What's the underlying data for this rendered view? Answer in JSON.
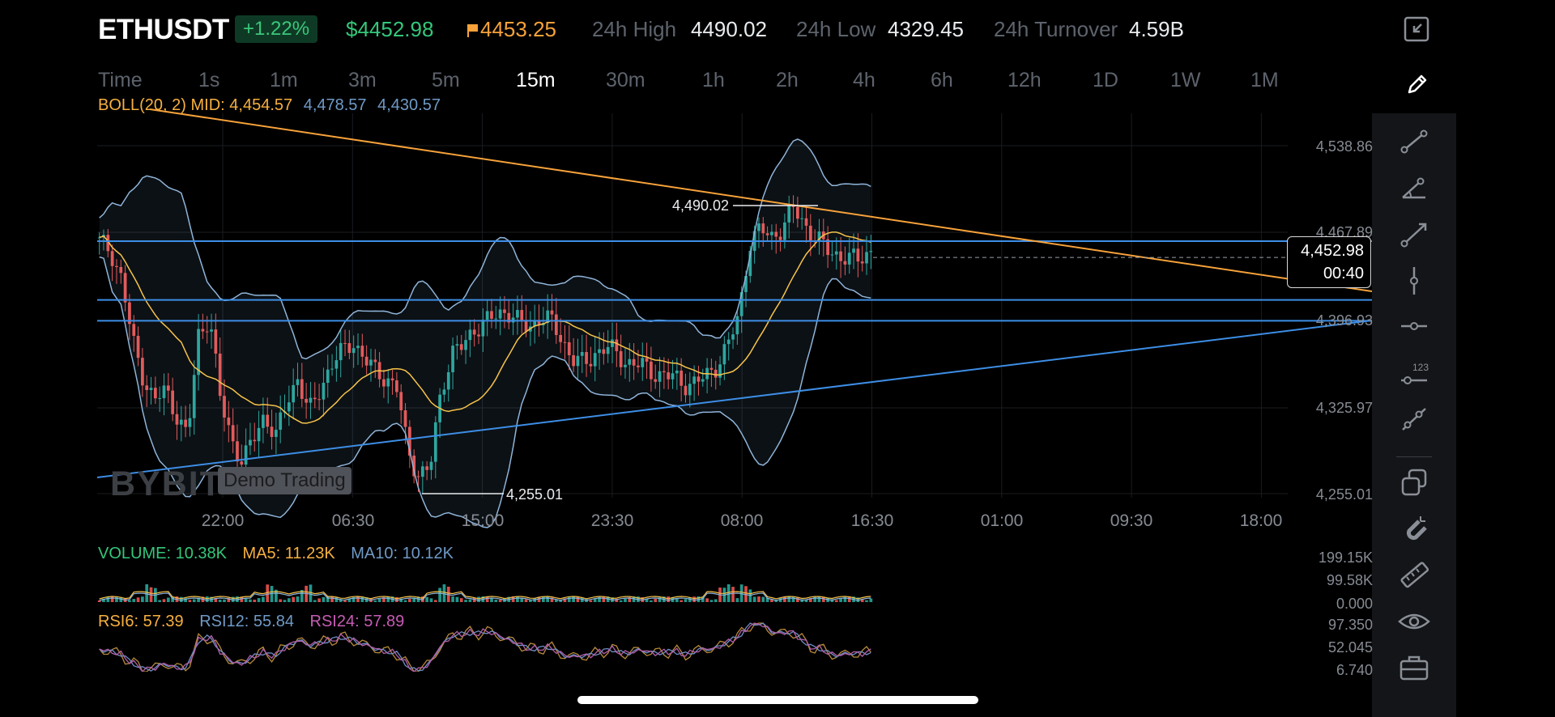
{
  "header": {
    "symbol": "ETHUSDT",
    "change_pct": "+1.22%",
    "last_price": "$4452.98",
    "mark_price": "4453.25",
    "high_label": "24h High",
    "high_value": "4490.02",
    "low_label": "24h Low",
    "low_value": "4329.45",
    "turnover_label": "24h Turnover",
    "turnover_value": "4.59B"
  },
  "timeframes": [
    "Time",
    "1s",
    "1m",
    "3m",
    "5m",
    "15m",
    "30m",
    "1h",
    "2h",
    "4h",
    "6h",
    "12h",
    "1D",
    "1W",
    "1M"
  ],
  "active_timeframe": "15m",
  "boll": {
    "label": "BOLL(20, 2) MID: 4,454.57",
    "upper": "4,478.57",
    "lower": "4,430.57"
  },
  "volume_legend": {
    "volume": "VOLUME: 10.38K",
    "ma5": "MA5: 11.23K",
    "ma10": "MA10: 10.12K"
  },
  "rsi_legend": {
    "rsi6": "RSI6: 57.39",
    "rsi12": "RSI12: 55.84",
    "rsi24": "RSI24: 57.89"
  },
  "price_axis": [
    "4,538.86",
    "4,467.89",
    "4,396.93",
    "4,325.97",
    "4,255.01"
  ],
  "volume_axis": [
    "199.15K",
    "99.58K",
    "0.000"
  ],
  "rsi_axis": [
    "97.350",
    "52.045",
    "6.740"
  ],
  "time_axis": [
    "22:00",
    "06:30",
    "15:00",
    "23:30",
    "08:00",
    "16:30",
    "01:00",
    "09:30",
    "18:00"
  ],
  "current_price_tag": {
    "price": "4,452.98",
    "countdown": "00:40"
  },
  "high_marker": "4,490.02",
  "low_marker": "4,255.01",
  "watermark": {
    "logo": "BYBIT",
    "badge": "Demo Trading"
  },
  "colors": {
    "up": "#26a69a",
    "down": "#ef5350",
    "boll_mid": "#f7c34a",
    "boll_band": "#8fb4d9",
    "trend_orange": "#f7a23a",
    "trend_blue": "#3d8ee6",
    "accent_green": "#34c77a"
  },
  "tools": [
    "pencil-icon",
    "line-segment-icon",
    "angle-line-icon",
    "ray-icon",
    "vertical-line-icon",
    "horizontal-line-icon",
    "price-label-icon",
    "trend-line-icon",
    "layers-icon",
    "magnet-icon",
    "ruler-icon",
    "eye-icon",
    "toolbox-icon"
  ],
  "chart_data": {
    "type": "candlestick",
    "symbol": "ETHUSDT",
    "interval": "15m",
    "y_range": [
      4255.01,
      4538.86
    ],
    "time_ticks": [
      "22:00",
      "06:30",
      "15:00",
      "23:30",
      "08:00",
      "16:30",
      "01:00",
      "09:30",
      "18:00"
    ],
    "close_path": [
      4460,
      4454,
      4430,
      4380,
      4350,
      4330,
      4340,
      4320,
      4300,
      4385,
      4400,
      4330,
      4300,
      4280,
      4300,
      4320,
      4300,
      4330,
      4350,
      4320,
      4340,
      4360,
      4370,
      4380,
      4365,
      4355,
      4350,
      4340,
      4290,
      4270,
      4275,
      4340,
      4370,
      4375,
      4390,
      4395,
      4400,
      4405,
      4395,
      4390,
      4400,
      4395,
      4380,
      4365,
      4360,
      4370,
      4375,
      4368,
      4362,
      4360,
      4355,
      4352,
      4350,
      4345,
      4345,
      4350,
      4360,
      4375,
      4400,
      4460,
      4470,
      4465,
      4472,
      4488,
      4475,
      4462,
      4455,
      4450,
      4445,
      4448,
      4453
    ],
    "overlays": {
      "boll_mid": "4,454.57",
      "boll_upper": "4,478.57",
      "boll_lower": "4,430.57"
    },
    "annotations": {
      "high": 4490.02,
      "low": 4255.01,
      "horizontal_lines": [
        4461,
        4413,
        4396
      ]
    }
  }
}
